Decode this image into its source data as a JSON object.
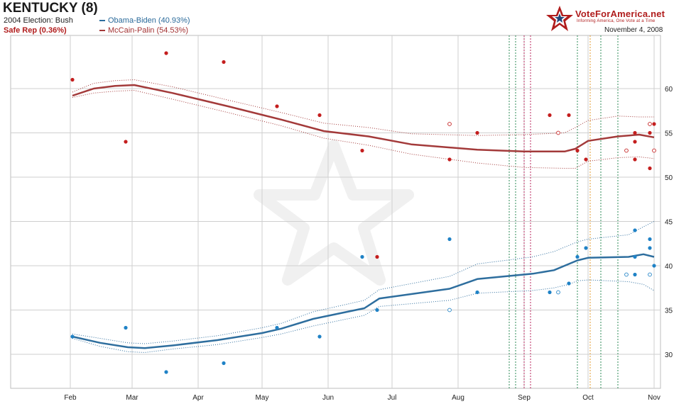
{
  "header": {
    "title": "KENTUCKY (8)",
    "prev_election": "2004 Election: Bush",
    "status": "Safe Rep (0.36%)",
    "logo_name": "VoteForAmerica.net",
    "logo_tagline": "Informing America, One Vote at a Time",
    "date": "November 4, 2008"
  },
  "colors": {
    "dem": "#2e6e9e",
    "dem_point": "#1f82c6",
    "rep": "#a33a3a",
    "rep_point": "#c41e1e",
    "grid": "#cfcfcf"
  },
  "chart_data": {
    "type": "line",
    "title": "KENTUCKY (8)",
    "xlabel": "",
    "ylabel": "",
    "ylim": [
      26,
      65
    ],
    "x_ticks": [
      "Feb",
      "Mar",
      "Apr",
      "May",
      "Jun",
      "Jul",
      "Aug",
      "Sep",
      "Oct",
      "Nov"
    ],
    "y_ticks": [
      30,
      35,
      40,
      45,
      50,
      55,
      60
    ],
    "grid": true,
    "legend_position": "top-left",
    "series": [
      {
        "name": "Obama-Biden (40.93%)",
        "color": "#2e6e9e",
        "x": [
          "2008-02-02",
          "2008-02-15",
          "2008-02-28",
          "2008-03-07",
          "2008-03-20",
          "2008-04-10",
          "2008-05-01",
          "2008-05-10",
          "2008-05-25",
          "2008-06-18",
          "2008-06-25",
          "2008-07-28",
          "2008-08-10",
          "2008-09-05",
          "2008-09-15",
          "2008-09-22",
          "2008-09-26",
          "2008-10-01",
          "2008-10-20",
          "2008-10-27",
          "2008-11-01"
        ],
        "values": [
          32.0,
          31.3,
          30.8,
          30.7,
          31.0,
          31.6,
          32.4,
          32.9,
          34.0,
          35.2,
          36.3,
          37.4,
          38.5,
          39.1,
          39.5,
          40.2,
          40.6,
          40.9,
          41.0,
          41.3,
          41.0
        ],
        "upper": [
          32.3,
          31.8,
          31.3,
          31.2,
          31.5,
          32.1,
          33.0,
          33.5,
          34.8,
          36.1,
          37.3,
          38.8,
          40.2,
          41.0,
          41.6,
          42.3,
          42.7,
          43.0,
          43.5,
          44.4,
          45.0
        ],
        "lower": [
          31.8,
          30.9,
          30.3,
          30.2,
          30.6,
          31.1,
          31.9,
          32.3,
          33.2,
          34.4,
          35.4,
          36.1,
          36.9,
          37.2,
          37.5,
          37.9,
          38.3,
          38.4,
          38.2,
          37.9,
          37.2
        ]
      },
      {
        "name": "McCain-Palin (54.53%)",
        "color": "#a33a3a",
        "x": [
          "2008-02-02",
          "2008-02-12",
          "2008-02-22",
          "2008-03-02",
          "2008-03-20",
          "2008-04-15",
          "2008-05-10",
          "2008-05-30",
          "2008-06-20",
          "2008-07-10",
          "2008-08-10",
          "2008-09-01",
          "2008-09-20",
          "2008-09-25",
          "2008-10-01",
          "2008-10-15",
          "2008-10-25",
          "2008-11-01"
        ],
        "values": [
          59.2,
          60.0,
          60.3,
          60.4,
          59.5,
          58.0,
          56.5,
          55.2,
          54.6,
          53.7,
          53.1,
          52.9,
          52.9,
          53.2,
          54.1,
          54.6,
          54.8,
          54.5
        ],
        "upper": [
          59.6,
          60.6,
          60.9,
          61.0,
          60.2,
          58.7,
          57.3,
          56.1,
          55.6,
          54.9,
          54.7,
          54.8,
          55.0,
          55.6,
          56.4,
          56.9,
          56.8,
          56.8
        ],
        "lower": [
          59.0,
          59.5,
          59.7,
          59.8,
          58.8,
          57.3,
          55.8,
          54.4,
          53.6,
          52.6,
          51.6,
          51.1,
          51.0,
          51.0,
          51.8,
          52.2,
          52.3,
          52.1
        ]
      }
    ],
    "polls": {
      "obama": {
        "filled": [
          [
            "2008-02-02",
            32
          ],
          [
            "2008-02-27",
            33
          ],
          [
            "2008-03-17",
            28
          ],
          [
            "2008-04-13",
            29
          ],
          [
            "2008-05-08",
            33
          ],
          [
            "2008-05-28",
            32
          ],
          [
            "2008-06-17",
            41
          ],
          [
            "2008-06-24",
            35
          ],
          [
            "2008-07-28",
            43
          ],
          [
            "2008-08-10",
            37
          ],
          [
            "2008-09-13",
            37
          ],
          [
            "2008-09-22",
            38
          ],
          [
            "2008-09-26",
            41
          ],
          [
            "2008-09-30",
            42
          ],
          [
            "2008-10-23",
            41
          ],
          [
            "2008-10-23",
            44
          ],
          [
            "2008-10-23",
            39
          ],
          [
            "2008-10-30",
            43
          ],
          [
            "2008-10-30",
            42
          ],
          [
            "2008-11-01",
            40
          ]
        ],
        "open": [
          [
            "2008-07-28",
            35
          ],
          [
            "2008-09-17",
            37
          ],
          [
            "2008-10-19",
            39
          ],
          [
            "2008-10-30",
            39
          ]
        ]
      },
      "mccain": {
        "filled": [
          [
            "2008-02-02",
            61
          ],
          [
            "2008-02-27",
            54
          ],
          [
            "2008-03-17",
            64
          ],
          [
            "2008-04-13",
            63
          ],
          [
            "2008-05-08",
            58
          ],
          [
            "2008-05-28",
            57
          ],
          [
            "2008-06-17",
            53
          ],
          [
            "2008-06-24",
            41
          ],
          [
            "2008-07-28",
            52
          ],
          [
            "2008-08-10",
            55
          ],
          [
            "2008-09-13",
            57
          ],
          [
            "2008-09-22",
            57
          ],
          [
            "2008-09-26",
            53
          ],
          [
            "2008-09-30",
            52
          ],
          [
            "2008-10-23",
            55
          ],
          [
            "2008-10-23",
            54
          ],
          [
            "2008-10-23",
            52
          ],
          [
            "2008-10-30",
            55
          ],
          [
            "2008-10-30",
            51
          ],
          [
            "2008-11-01",
            56
          ]
        ],
        "open": [
          [
            "2008-07-28",
            56
          ],
          [
            "2008-09-17",
            55
          ],
          [
            "2008-10-19",
            53
          ],
          [
            "2008-10-30",
            56
          ],
          [
            "2008-11-01",
            53
          ]
        ]
      }
    },
    "event_lines": [
      {
        "date": "2008-08-25",
        "color": "#2e8b57"
      },
      {
        "date": "2008-08-28",
        "color": "#2e8b57"
      },
      {
        "date": "2008-09-01",
        "color": "#b8245e"
      },
      {
        "date": "2008-09-04",
        "color": "#b8245e"
      },
      {
        "date": "2008-09-26",
        "color": "#2e8b57"
      },
      {
        "date": "2008-10-02",
        "color": "#e39b2c"
      },
      {
        "date": "2008-10-07",
        "color": "#2e8b57"
      },
      {
        "date": "2008-10-15",
        "color": "#2e8b57"
      }
    ]
  }
}
